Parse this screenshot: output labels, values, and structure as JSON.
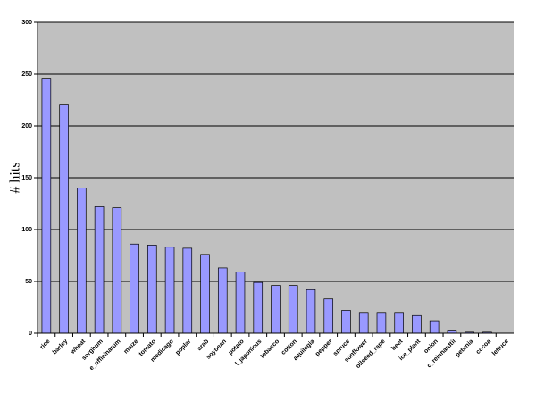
{
  "chart_data": {
    "type": "bar",
    "y_label": "# hits",
    "categories": [
      "rice",
      "barley",
      "wheat",
      "sorghum",
      "e_officinarum",
      "maize",
      "tomato",
      "medicago",
      "poplar",
      "arab",
      "soybean",
      "potato",
      "l_japonicus",
      "tobacco",
      "cotton",
      "aquilegia",
      "pepper",
      "spruce",
      "sunflower",
      "oilseed_rape",
      "beet",
      "ice_plant",
      "onion",
      "c_reinhardtii",
      "petunia",
      "cocoa",
      "lettuce"
    ],
    "values": [
      246,
      221,
      140,
      122,
      121,
      86,
      85,
      83,
      82,
      76,
      63,
      59,
      49,
      46,
      46,
      42,
      33,
      22,
      20,
      20,
      20,
      17,
      12,
      3,
      1,
      1,
      0
    ],
    "color": "#9999ff",
    "ylim": [
      0,
      300
    ],
    "yticks": [
      0,
      50,
      100,
      150,
      200,
      250,
      300
    ],
    "grid": true
  }
}
